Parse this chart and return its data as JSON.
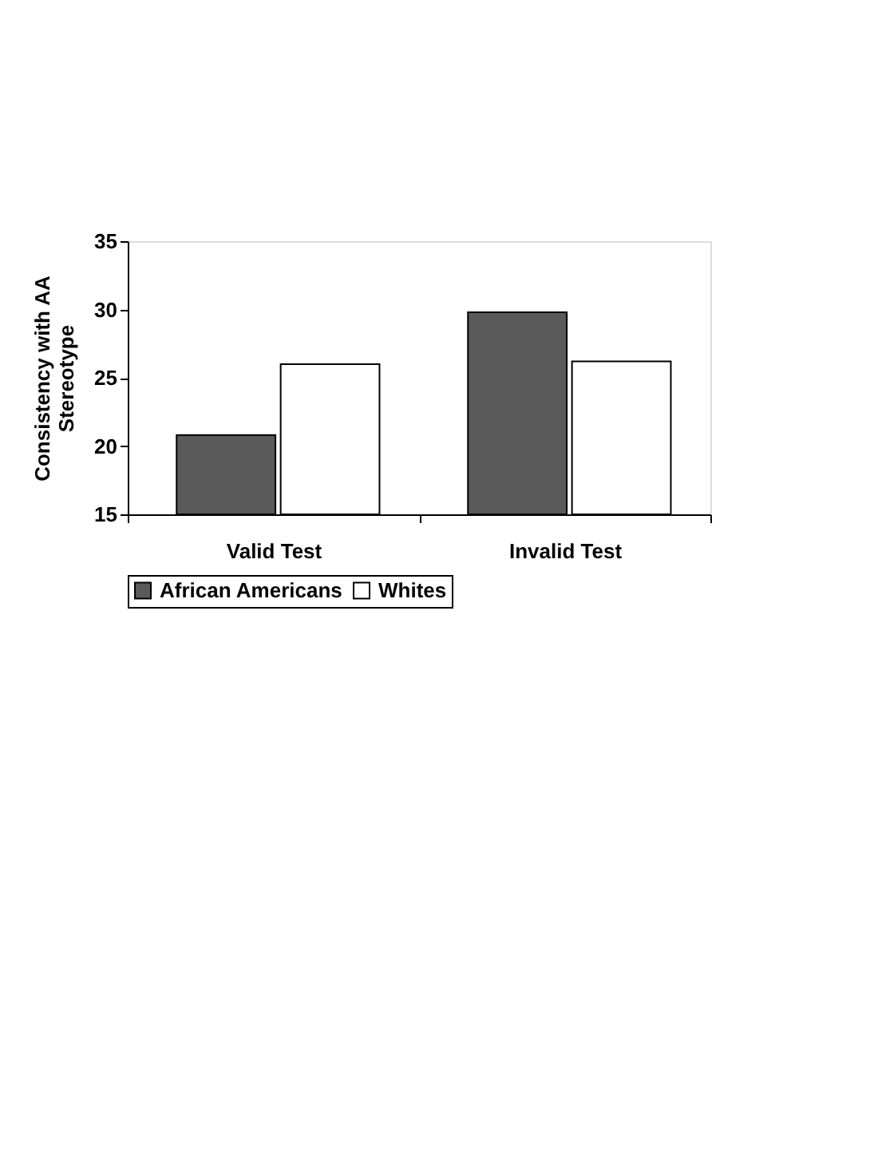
{
  "chart_data": {
    "type": "bar",
    "ylabel": "Consistency with AA Stereotype",
    "categories": [
      "Valid Test",
      "Invalid Test"
    ],
    "series": [
      {
        "name": "African Americans",
        "color": "#5a5a5a",
        "values": [
          20.8,
          29.8
        ]
      },
      {
        "name": "Whites",
        "color": "#ffffff",
        "values": [
          26.0,
          26.2
        ]
      }
    ],
    "ylim": [
      15,
      35
    ],
    "yticks": [
      15,
      20,
      25,
      30,
      35
    ],
    "grid": false,
    "legend": "bottom"
  }
}
